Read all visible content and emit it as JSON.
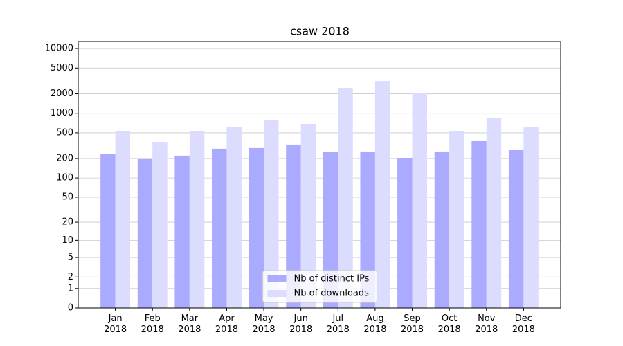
{
  "chart_data": {
    "type": "bar",
    "title": "csaw 2018",
    "categories": [
      "Jan\n2018",
      "Feb\n2018",
      "Mar\n2018",
      "Apr\n2018",
      "May\n2018",
      "Jun\n2018",
      "Jul\n2018",
      "Aug\n2018",
      "Sep\n2018",
      "Oct\n2018",
      "Nov\n2018",
      "Dec\n2018"
    ],
    "series": [
      {
        "name": "Nb of distinct IPs",
        "color": "#aaaaff",
        "values": [
          233,
          196,
          222,
          284,
          291,
          329,
          251,
          257,
          201,
          257,
          372,
          270
        ]
      },
      {
        "name": "Nb of downloads",
        "color": "#dcdcff",
        "values": [
          524,
          362,
          537,
          622,
          777,
          687,
          2465,
          3150,
          2026,
          537,
          836,
          608
        ]
      }
    ],
    "yscale": "log1p",
    "ylim": [
      0,
      12800
    ],
    "yticks": [
      0,
      1,
      2,
      5,
      10,
      20,
      50,
      100,
      200,
      500,
      1000,
      2000,
      5000,
      10000
    ],
    "grid": true,
    "legend": "lower center"
  }
}
